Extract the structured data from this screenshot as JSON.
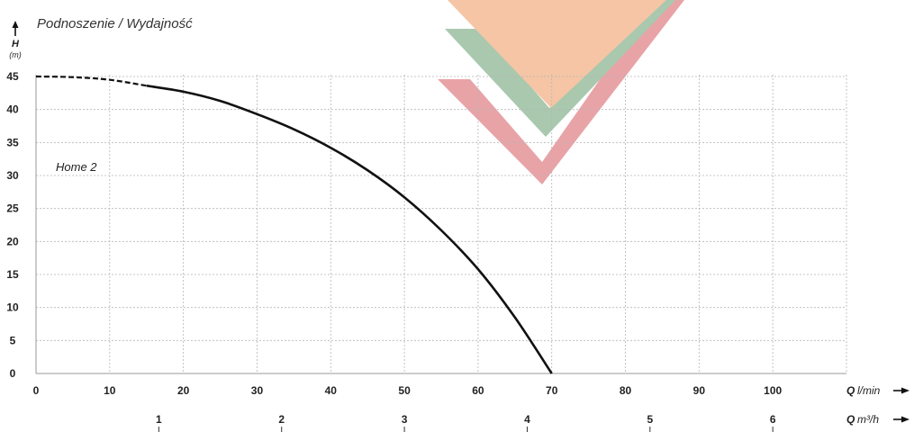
{
  "chart_data": {
    "type": "line",
    "title": "Podnoszenie / Wydajność",
    "ylabel": "H",
    "yunit": "(m)",
    "xlabel": "Q",
    "xunit": "l/min",
    "x2label": "Q",
    "x2unit": "m³/h",
    "xlim": [
      0,
      110
    ],
    "ylim": [
      0,
      45
    ],
    "x_ticks": [
      0,
      10,
      20,
      30,
      40,
      50,
      60,
      70,
      80,
      90,
      100
    ],
    "y_ticks": [
      0,
      5,
      10,
      15,
      20,
      25,
      30,
      35,
      40,
      45
    ],
    "x2_ticks": [
      1,
      2,
      3,
      4,
      5,
      6
    ],
    "grid": true,
    "series": [
      {
        "name": "Home 2",
        "color": "#111111",
        "dashed_until_x": 15,
        "points": [
          [
            0,
            45
          ],
          [
            5,
            44.9
          ],
          [
            10,
            44.5
          ],
          [
            15,
            43.6
          ],
          [
            20,
            42.7
          ],
          [
            25,
            41.3
          ],
          [
            30,
            39.3
          ],
          [
            35,
            37.0
          ],
          [
            40,
            34.2
          ],
          [
            45,
            30.8
          ],
          [
            50,
            26.7
          ],
          [
            55,
            21.7
          ],
          [
            60,
            15.8
          ],
          [
            65,
            8.5
          ],
          [
            70,
            0
          ]
        ]
      }
    ]
  },
  "logo": {
    "colors": [
      "#f5c5a5",
      "#a9c8ae",
      "#e8a3a7"
    ]
  }
}
